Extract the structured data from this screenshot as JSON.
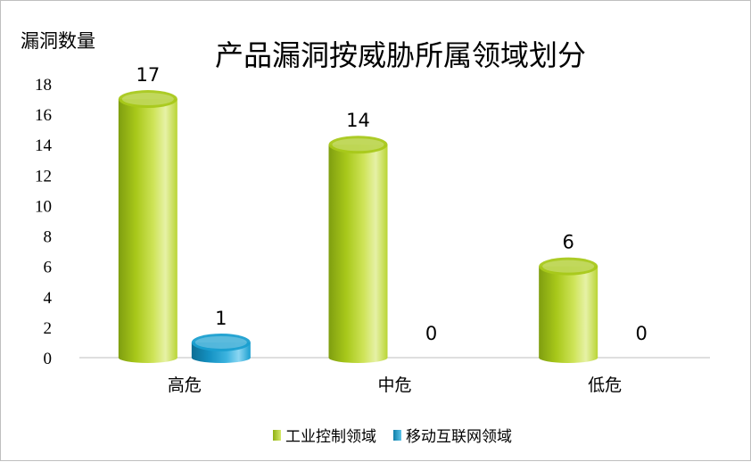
{
  "chart_data": {
    "type": "bar",
    "title": "产品漏洞按威胁所属领域划分",
    "ylabel": "漏洞数量",
    "xlabel": "",
    "categories": [
      "高危",
      "中危",
      "低危"
    ],
    "ylim": [
      0,
      18
    ],
    "yticks": [
      0,
      2,
      4,
      6,
      8,
      10,
      12,
      14,
      16,
      18
    ],
    "grid": false,
    "legend_position": "bottom",
    "series": [
      {
        "name": "工业控制领域",
        "values": [
          17,
          14,
          6
        ],
        "color": "#a8c81a"
      },
      {
        "name": "移动互联网领域",
        "values": [
          1,
          0,
          0
        ],
        "color": "#1a9fd0"
      }
    ]
  }
}
